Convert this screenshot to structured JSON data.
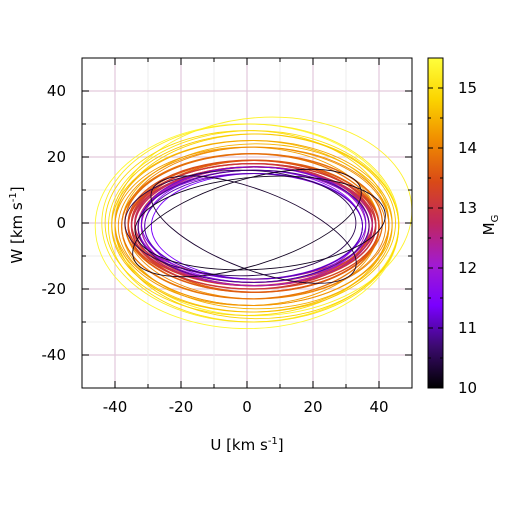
{
  "chart_data": {
    "type": "line",
    "xlabel": "U [km s",
    "xlabel_sup": "-1",
    "xlabel_end": "]",
    "ylabel": "W [km s",
    "ylabel_sup": "-1",
    "ylabel_end": "]",
    "xlim": [
      -50,
      50
    ],
    "ylim": [
      -50,
      50
    ],
    "xticks": [
      -40,
      -20,
      0,
      20,
      40
    ],
    "yticks": [
      -40,
      -20,
      0,
      20,
      40
    ],
    "xtick_labels": [
      "-40",
      "-20",
      "0",
      "20",
      "40"
    ],
    "ytick_labels": [
      "-40",
      "-20",
      "0",
      "20",
      "40"
    ],
    "grid": true,
    "grid_color": "#e3c9dc",
    "colorbar": {
      "label": "M",
      "label_sub": "G",
      "min": 10,
      "max": 15.5,
      "ticks": [
        10,
        11,
        12,
        13,
        14,
        15
      ],
      "tick_labels": [
        "10",
        "11",
        "12",
        "13",
        "14",
        "15"
      ],
      "colormap": [
        "#000000",
        "#3b0a6e",
        "#7a00ff",
        "#a21bd0",
        "#c0265f",
        "#d94a17",
        "#f08c00",
        "#fbd400",
        "#ffff3c"
      ]
    },
    "series": [
      {
        "mag": 10.2,
        "cu": 0,
        "cw": 0,
        "au": 36,
        "aw": 13,
        "rot": 17
      },
      {
        "mag": 10.3,
        "cu": 2,
        "cw": -2,
        "au": 33,
        "aw": 12,
        "rot": -21
      },
      {
        "mag": 10.2,
        "cu": 4,
        "cw": 0,
        "au": 38,
        "aw": 14,
        "rot": 4
      },
      {
        "mag": 10.5,
        "cu": -2,
        "cw": 0,
        "au": 35,
        "aw": 16,
        "rot": 0
      },
      {
        "mag": 10.8,
        "cu": 2,
        "cw": -1,
        "au": 35,
        "aw": 17,
        "rot": 1
      },
      {
        "mag": 11.0,
        "cu": 2,
        "cw": -1,
        "au": 33,
        "aw": 16,
        "rot": 0
      },
      {
        "mag": 11.2,
        "cu": 2,
        "cw": 0,
        "au": 34,
        "aw": 17,
        "rot": 0
      },
      {
        "mag": 11.4,
        "cu": 3,
        "cw": -1,
        "au": 32,
        "aw": 16,
        "rot": 0
      },
      {
        "mag": 11.6,
        "cu": 2,
        "cw": -1,
        "au": 33,
        "aw": 17,
        "rot": 0
      },
      {
        "mag": 11.8,
        "cu": 1,
        "cw": -1,
        "au": 34,
        "aw": 16,
        "rot": 0
      },
      {
        "mag": 12.0,
        "cu": 2,
        "cw": -1,
        "au": 35,
        "aw": 17,
        "rot": 0
      },
      {
        "mag": 12.2,
        "cu": 2,
        "cw": -1,
        "au": 34,
        "aw": 18,
        "rot": 0
      },
      {
        "mag": 12.4,
        "cu": 2,
        "cw": -1,
        "au": 35,
        "aw": 17,
        "rot": 0
      },
      {
        "mag": 12.6,
        "cu": 3,
        "cw": -1,
        "au": 35,
        "aw": 18,
        "rot": 0
      },
      {
        "mag": 12.8,
        "cu": 2,
        "cw": -1,
        "au": 36,
        "aw": 18,
        "rot": 0
      },
      {
        "mag": 12.9,
        "cu": 2,
        "cw": 0,
        "au": 36,
        "aw": 17,
        "rot": 0
      },
      {
        "mag": 13.0,
        "cu": 2,
        "cw": -1,
        "au": 37,
        "aw": 18,
        "rot": 0
      },
      {
        "mag": 13.1,
        "cu": 1,
        "cw": -1,
        "au": 36,
        "aw": 19,
        "rot": 0
      },
      {
        "mag": 13.2,
        "cu": 2,
        "cw": 0,
        "au": 37,
        "aw": 18,
        "rot": 0
      },
      {
        "mag": 13.3,
        "cu": 3,
        "cw": -1,
        "au": 36,
        "aw": 18,
        "rot": 0
      },
      {
        "mag": 13.4,
        "cu": 2,
        "cw": -1,
        "au": 38,
        "aw": 19,
        "rot": 0
      },
      {
        "mag": 13.5,
        "cu": 1,
        "cw": 0,
        "au": 37,
        "aw": 19,
        "rot": 0
      },
      {
        "mag": 13.6,
        "cu": 2,
        "cw": -1,
        "au": 38,
        "aw": 20,
        "rot": 0
      },
      {
        "mag": 13.7,
        "cu": 3,
        "cw": -1,
        "au": 37,
        "aw": 20,
        "rot": 0
      },
      {
        "mag": 13.8,
        "cu": 2,
        "cw": 0,
        "au": 39,
        "aw": 21,
        "rot": 0
      },
      {
        "mag": 13.9,
        "cu": 1,
        "cw": -1,
        "au": 39,
        "aw": 22,
        "rot": 0
      },
      {
        "mag": 14.0,
        "cu": 2,
        "cw": -1,
        "au": 40,
        "aw": 22,
        "rot": 0
      },
      {
        "mag": 14.1,
        "cu": 3,
        "cw": 0,
        "au": 40,
        "aw": 23,
        "rot": 0
      },
      {
        "mag": 14.2,
        "cu": 2,
        "cw": -1,
        "au": 41,
        "aw": 24,
        "rot": 0
      },
      {
        "mag": 14.3,
        "cu": 0,
        "cw": -1,
        "au": 40,
        "aw": 24,
        "rot": 0
      },
      {
        "mag": 14.4,
        "cu": 2,
        "cw": 0,
        "au": 42,
        "aw": 25,
        "rot": 0
      },
      {
        "mag": 14.5,
        "cu": 3,
        "cw": -1,
        "au": 41,
        "aw": 25,
        "rot": 0
      },
      {
        "mag": 14.6,
        "cu": 1,
        "cw": -1,
        "au": 42,
        "aw": 26,
        "rot": 0
      },
      {
        "mag": 14.7,
        "cu": 2,
        "cw": 0,
        "au": 43,
        "aw": 27,
        "rot": 0
      },
      {
        "mag": 14.8,
        "cu": 3,
        "cw": -1,
        "au": 43,
        "aw": 28,
        "rot": 0
      },
      {
        "mag": 14.9,
        "cu": 0,
        "cw": 0,
        "au": 43,
        "aw": 28,
        "rot": 0
      },
      {
        "mag": 15.0,
        "cu": 2,
        "cw": -1,
        "au": 44,
        "aw": 29,
        "rot": 0
      },
      {
        "mag": 15.2,
        "cu": 1,
        "cw": 0,
        "au": 45,
        "aw": 30,
        "rot": 0
      },
      {
        "mag": 15.3,
        "cu": 5,
        "cw": 2,
        "au": 45,
        "aw": 30,
        "rot": 4
      },
      {
        "mag": 15.4,
        "cu": 0,
        "cw": -1,
        "au": 46,
        "aw": 31,
        "rot": 0
      }
    ]
  }
}
